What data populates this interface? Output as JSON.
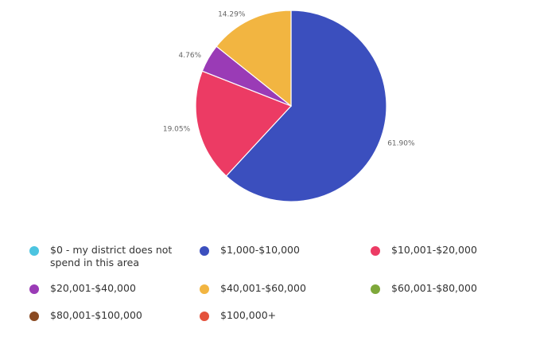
{
  "chart_data": {
    "type": "pie",
    "slices": [
      {
        "label": "$1,000-$10,000",
        "value": 61.9,
        "display": "61.90%",
        "color": "#3b4fbe"
      },
      {
        "label": "$10,001-$20,000",
        "value": 19.05,
        "display": "19.05%",
        "color": "#ec3b64"
      },
      {
        "label": "$20,001-$40,000",
        "value": 4.76,
        "display": "4.76%",
        "color": "#9a3bb6"
      },
      {
        "label": "$40,001-$60,000",
        "value": 14.29,
        "display": "14.29%",
        "color": "#f2b541"
      }
    ],
    "legend": [
      {
        "label": "$0 - my district does not spend in this area",
        "color": "#4cc4e0"
      },
      {
        "label": "$1,000-$10,000",
        "color": "#3b4fbe"
      },
      {
        "label": "$10,001-$20,000",
        "color": "#ec3b64"
      },
      {
        "label": "$20,001-$40,000",
        "color": "#9a3bb6"
      },
      {
        "label": "$40,001-$60,000",
        "color": "#f2b541"
      },
      {
        "label": "$60,001-$80,000",
        "color": "#7ea83a"
      },
      {
        "label": "$80,001-$100,000",
        "color": "#8a4a22"
      },
      {
        "label": "$100,000+",
        "color": "#e4523c"
      }
    ],
    "legend_placement": "bottom"
  }
}
